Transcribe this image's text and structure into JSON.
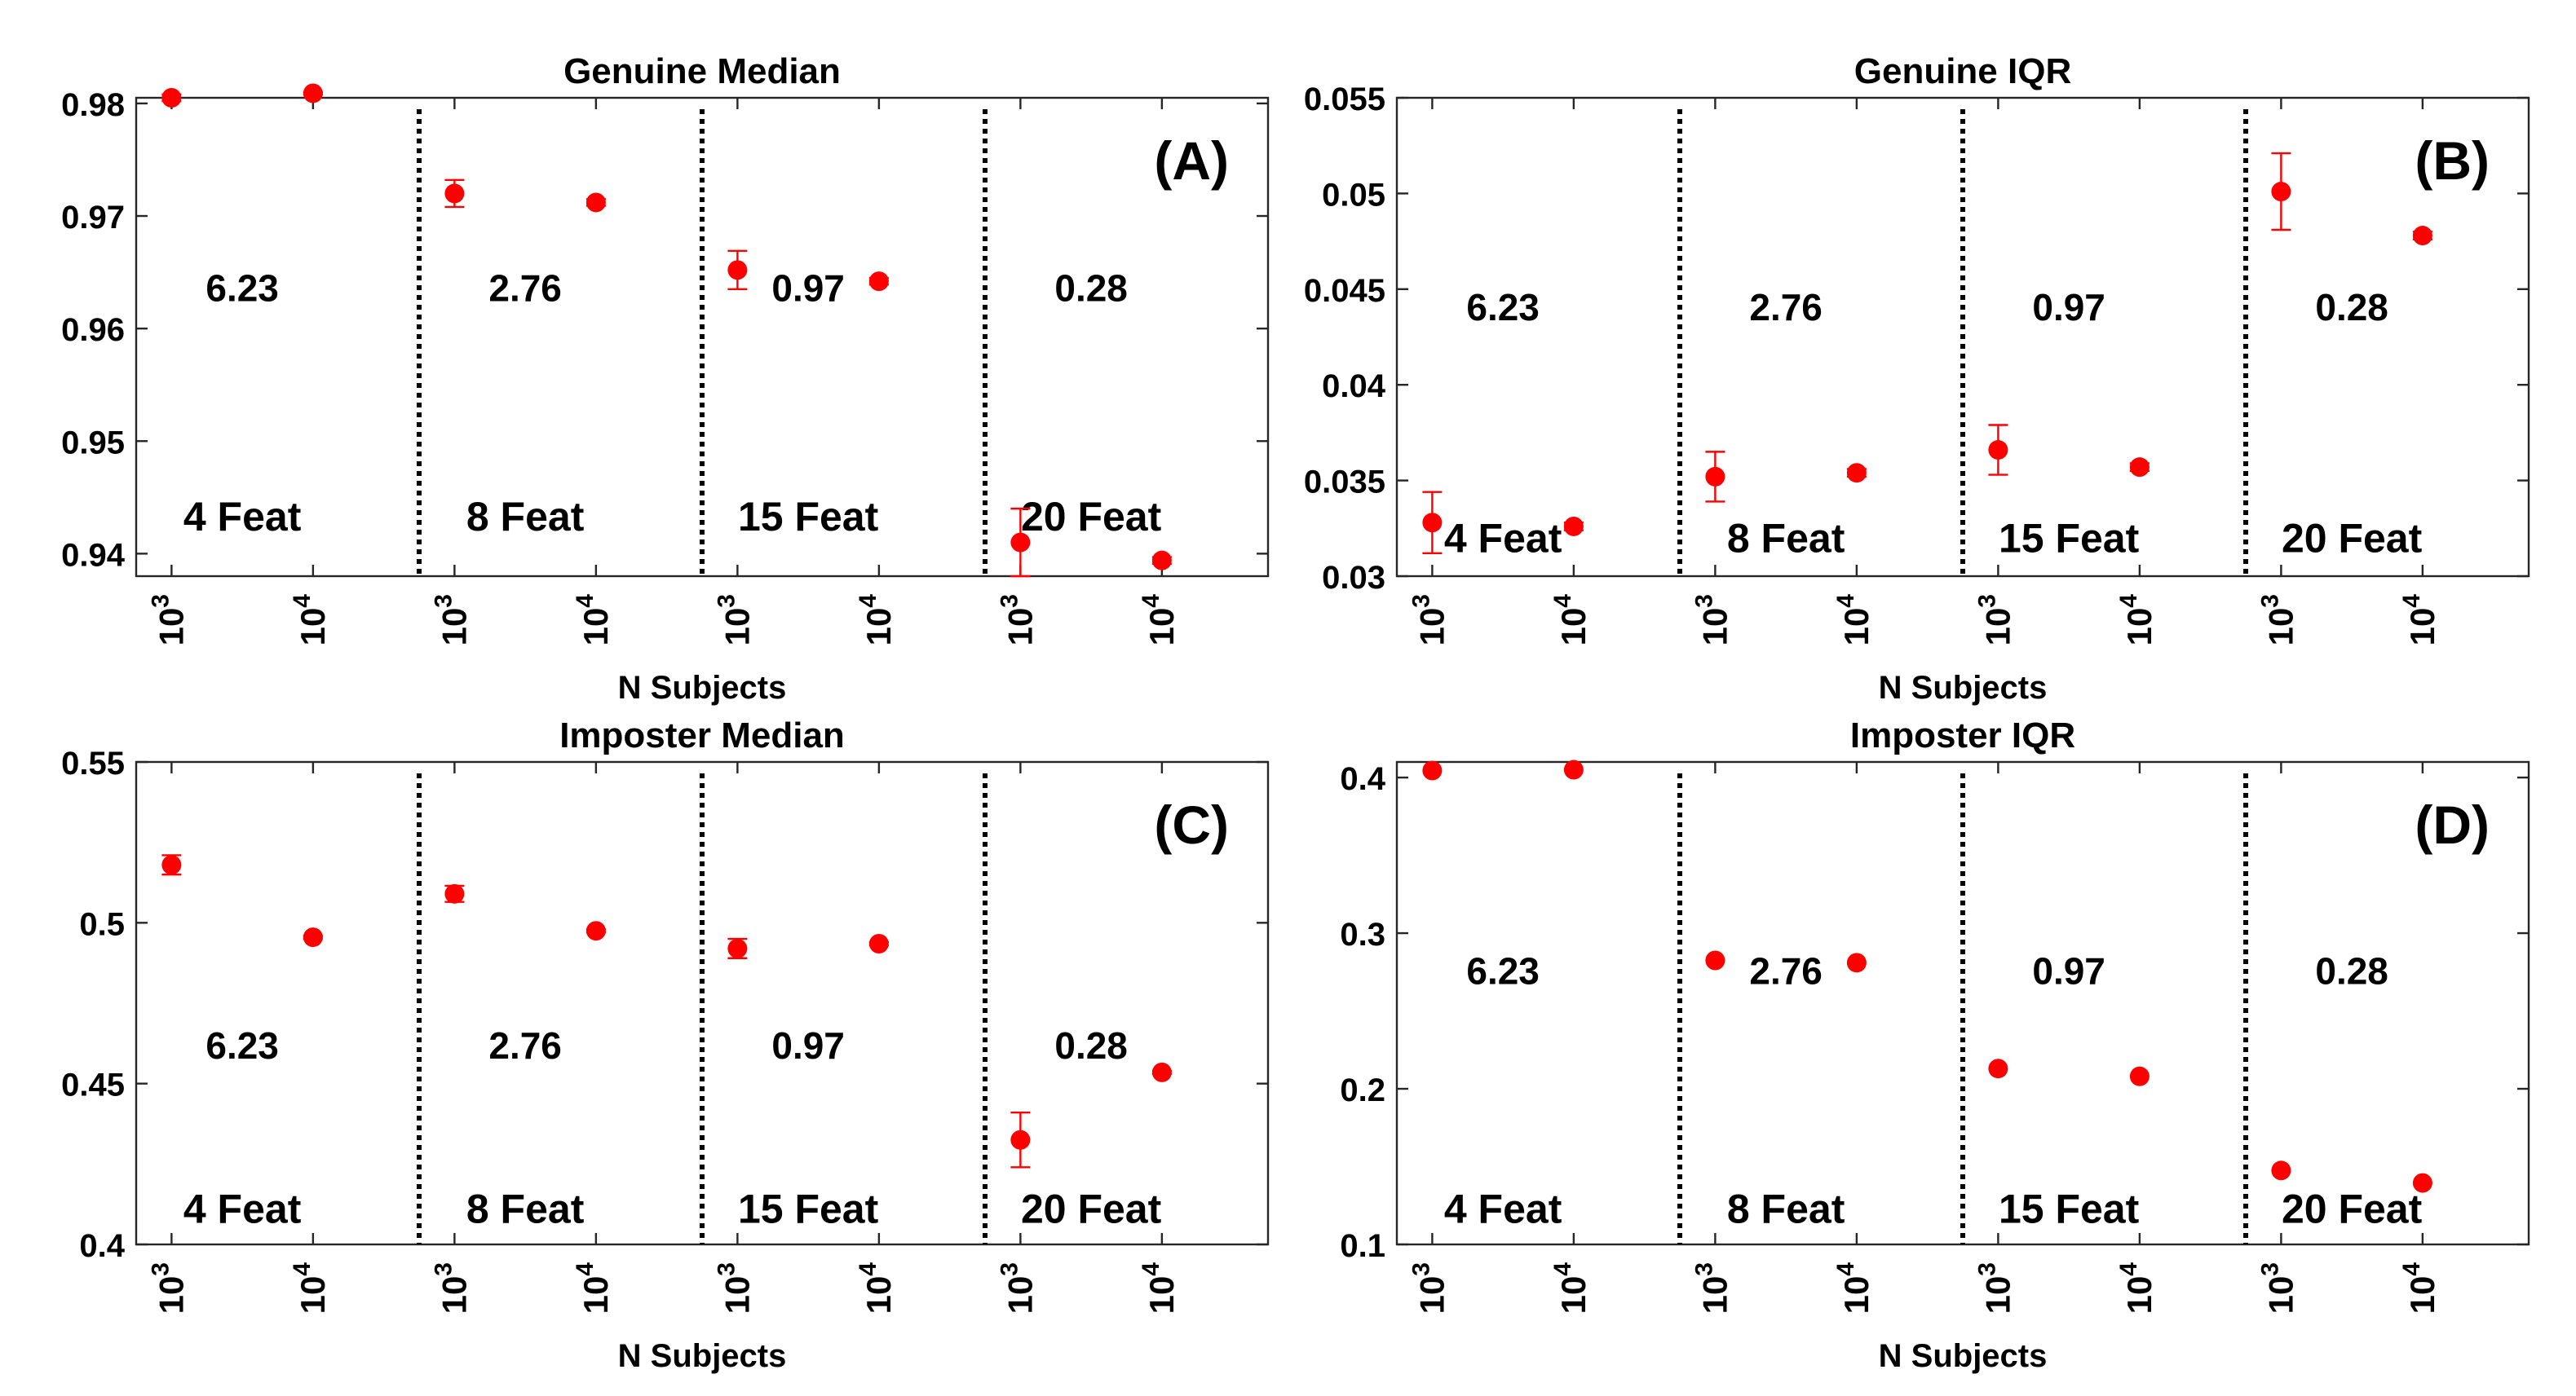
{
  "chart_data": [
    {
      "id": "A",
      "type": "scatter",
      "title": "Genuine Median",
      "panel_label": "(A)",
      "xlabel": "N Subjects",
      "ylabel": "",
      "ylim": [
        0.938,
        0.9805
      ],
      "yticks": [
        "0.94",
        "0.95",
        "0.96",
        "0.97",
        "0.98"
      ],
      "ytick_values": [
        0.94,
        0.95,
        0.96,
        0.97,
        0.98
      ],
      "xtick_base": "10",
      "xtick_exponents": [
        "3",
        "4"
      ],
      "groups": [
        {
          "label": "4 Feat",
          "value_label": "6.23",
          "points": [
            {
              "n": "10^3",
              "y": 0.9805,
              "err": 0.0003
            },
            {
              "n": "10^4",
              "y": 0.9809,
              "err": 0.0001
            }
          ]
        },
        {
          "label": "8 Feat",
          "value_label": "2.76",
          "points": [
            {
              "n": "10^3",
              "y": 0.972,
              "err": 0.0012
            },
            {
              "n": "10^4",
              "y": 0.9712,
              "err": 0.0003
            }
          ]
        },
        {
          "label": "15 Feat",
          "value_label": "0.97",
          "points": [
            {
              "n": "10^3",
              "y": 0.9652,
              "err": 0.0017
            },
            {
              "n": "10^4",
              "y": 0.9642,
              "err": 0.0003
            }
          ]
        },
        {
          "label": "20 Feat",
          "value_label": "0.28",
          "points": [
            {
              "n": "10^3",
              "y": 0.941,
              "err": 0.003
            },
            {
              "n": "10^4",
              "y": 0.9394,
              "err": 0.0003
            }
          ]
        }
      ]
    },
    {
      "id": "B",
      "type": "scatter",
      "title": "Genuine IQR",
      "panel_label": "(B)",
      "xlabel": "N Subjects",
      "ylabel": "",
      "ylim": [
        0.03,
        0.055
      ],
      "yticks": [
        "0.03",
        "0.035",
        "0.04",
        "0.045",
        "0.05",
        "0.055"
      ],
      "ytick_values": [
        0.03,
        0.035,
        0.04,
        0.045,
        0.05,
        0.055
      ],
      "xtick_base": "10",
      "xtick_exponents": [
        "3",
        "4"
      ],
      "groups": [
        {
          "label": "4 Feat",
          "value_label": "6.23",
          "points": [
            {
              "n": "10^3",
              "y": 0.0328,
              "err": 0.0016
            },
            {
              "n": "10^4",
              "y": 0.0326,
              "err": 0.0002
            }
          ]
        },
        {
          "label": "8 Feat",
          "value_label": "2.76",
          "points": [
            {
              "n": "10^3",
              "y": 0.0352,
              "err": 0.0013
            },
            {
              "n": "10^4",
              "y": 0.0354,
              "err": 0.0002
            }
          ]
        },
        {
          "label": "15 Feat",
          "value_label": "0.97",
          "points": [
            {
              "n": "10^3",
              "y": 0.0366,
              "err": 0.0013
            },
            {
              "n": "10^4",
              "y": 0.0357,
              "err": 0.0002
            }
          ]
        },
        {
          "label": "20 Feat",
          "value_label": "0.28",
          "points": [
            {
              "n": "10^3",
              "y": 0.0501,
              "err": 0.002
            },
            {
              "n": "10^4",
              "y": 0.0478,
              "err": 0.0002
            }
          ]
        }
      ]
    },
    {
      "id": "C",
      "type": "scatter",
      "title": "Imposter Median",
      "panel_label": "(C)",
      "xlabel": "N Subjects",
      "ylabel": "",
      "ylim": [
        0.4,
        0.55
      ],
      "yticks": [
        "0.4",
        "0.45",
        "0.5",
        "0.55"
      ],
      "ytick_values": [
        0.4,
        0.45,
        0.5,
        0.55
      ],
      "xtick_base": "10",
      "xtick_exponents": [
        "3",
        "4"
      ],
      "groups": [
        {
          "label": "4 Feat",
          "value_label": "6.23",
          "points": [
            {
              "n": "10^3",
              "y": 0.518,
              "err": 0.003
            },
            {
              "n": "10^4",
              "y": 0.4955,
              "err": 0.0005
            }
          ]
        },
        {
          "label": "8 Feat",
          "value_label": "2.76",
          "points": [
            {
              "n": "10^3",
              "y": 0.509,
              "err": 0.0025
            },
            {
              "n": "10^4",
              "y": 0.4975,
              "err": 0.0005
            }
          ]
        },
        {
          "label": "15 Feat",
          "value_label": "0.97",
          "points": [
            {
              "n": "10^3",
              "y": 0.492,
              "err": 0.003
            },
            {
              "n": "10^4",
              "y": 0.4935,
              "err": 0.0005
            }
          ]
        },
        {
          "label": "20 Feat",
          "value_label": "0.28",
          "points": [
            {
              "n": "10^3",
              "y": 0.4325,
              "err": 0.0085
            },
            {
              "n": "10^4",
              "y": 0.4535,
              "err": 0.0005
            }
          ]
        }
      ]
    },
    {
      "id": "D",
      "type": "scatter",
      "title": "Imposter IQR",
      "panel_label": "(D)",
      "xlabel": "N Subjects",
      "ylabel": "",
      "ylim": [
        0.1,
        0.41
      ],
      "yticks": [
        "0.1",
        "0.2",
        "0.3",
        "0.4"
      ],
      "ytick_values": [
        0.1,
        0.2,
        0.3,
        0.4
      ],
      "xtick_base": "10",
      "xtick_exponents": [
        "3",
        "4"
      ],
      "groups": [
        {
          "label": "4 Feat",
          "value_label": "6.23",
          "points": [
            {
              "n": "10^3",
              "y": 0.4045,
              "err": 0
            },
            {
              "n": "10^4",
              "y": 0.405,
              "err": 0
            }
          ]
        },
        {
          "label": "8 Feat",
          "value_label": "2.76",
          "points": [
            {
              "n": "10^3",
              "y": 0.2825,
              "err": 0
            },
            {
              "n": "10^4",
              "y": 0.281,
              "err": 0
            }
          ]
        },
        {
          "label": "15 Feat",
          "value_label": "0.97",
          "points": [
            {
              "n": "10^3",
              "y": 0.213,
              "err": 0
            },
            {
              "n": "10^4",
              "y": 0.208,
              "err": 0
            }
          ]
        },
        {
          "label": "20 Feat",
          "value_label": "0.28",
          "points": [
            {
              "n": "10^3",
              "y": 0.1475,
              "err": 0
            },
            {
              "n": "10^4",
              "y": 0.1395,
              "err": 0
            }
          ]
        }
      ]
    }
  ],
  "colors": {
    "marker": "#ff0000",
    "axis": "#262626",
    "separator": "#000000"
  }
}
